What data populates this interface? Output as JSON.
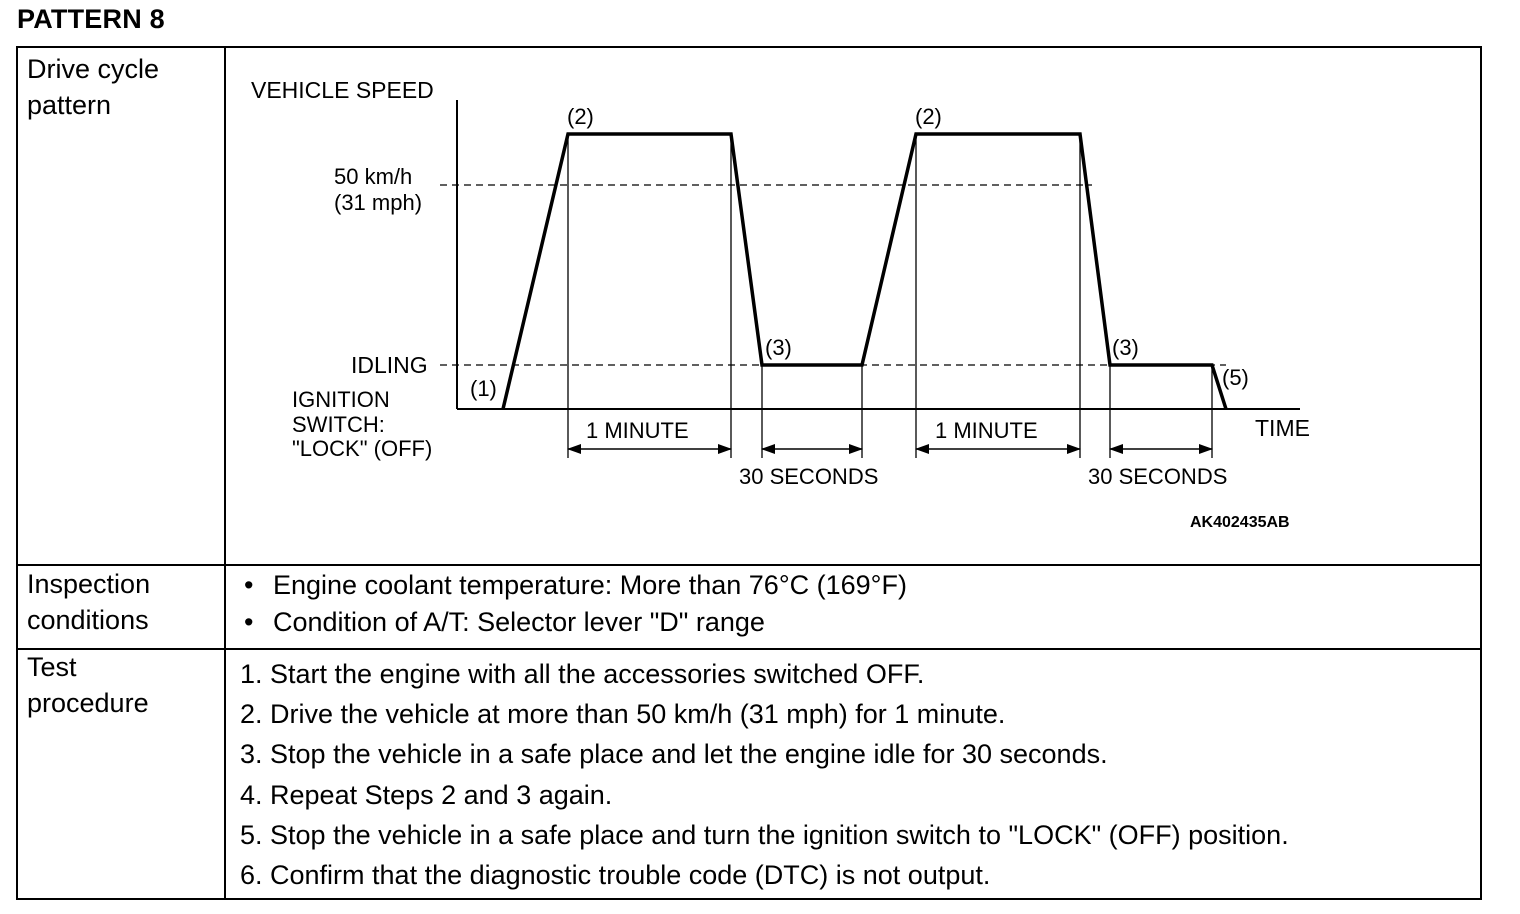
{
  "title": "PATTERN 8",
  "rows": {
    "drive_cycle_label": "Drive cycle\npattern",
    "inspection_label": "Inspection\nconditions",
    "test_label": "Test\nprocedure"
  },
  "chart_data": {
    "type": "line",
    "ylabel": "VEHICLE SPEED",
    "xlabel": "TIME",
    "y_reference_labels": [
      "50 km/h",
      "(31 mph)",
      "IDLING"
    ],
    "ignition_label": [
      "IGNITION",
      "SWITCH:",
      "\"LOCK\" (OFF)"
    ],
    "point_labels": [
      "(1)",
      "(2)",
      "(3)",
      "(2)",
      "(3)",
      "(5)"
    ],
    "interval_labels": [
      "1 MINUTE",
      "30 SECONDS",
      "1 MINUTE",
      "30 SECONDS"
    ],
    "figure_code": "AK402435AB",
    "series": [
      {
        "points": [
          {
            "phase": "(1)",
            "state": "ignition off -> start"
          },
          {
            "phase": "(2)",
            "speed": "above 50 km/h",
            "duration": "1 MINUTE"
          },
          {
            "phase": "(3)",
            "speed": "IDLING",
            "duration": "30 SECONDS"
          },
          {
            "phase": "(2)",
            "speed": "above 50 km/h",
            "duration": "1 MINUTE"
          },
          {
            "phase": "(3)",
            "speed": "IDLING",
            "duration": "30 SECONDS"
          },
          {
            "phase": "(5)",
            "state": "ignition LOCK (OFF)"
          }
        ]
      }
    ]
  },
  "inspection_conditions": [
    "Engine coolant temperature: More than 76°C (169°F)",
    "Condition of A/T: Selector lever \"D\" range"
  ],
  "bullet": "•",
  "test_procedure": [
    "1. Start the engine with all the accessories switched OFF.",
    "2. Drive the vehicle at more than 50 km/h (31 mph) for 1 minute.",
    "3. Stop the vehicle in a safe place and let the engine idle for 30 seconds.",
    "4. Repeat Steps 2 and 3 again.",
    "5. Stop the vehicle in a safe place and turn the ignition switch to \"LOCK\" (OFF) position.",
    "6. Confirm that the diagnostic trouble code (DTC) is not output."
  ]
}
